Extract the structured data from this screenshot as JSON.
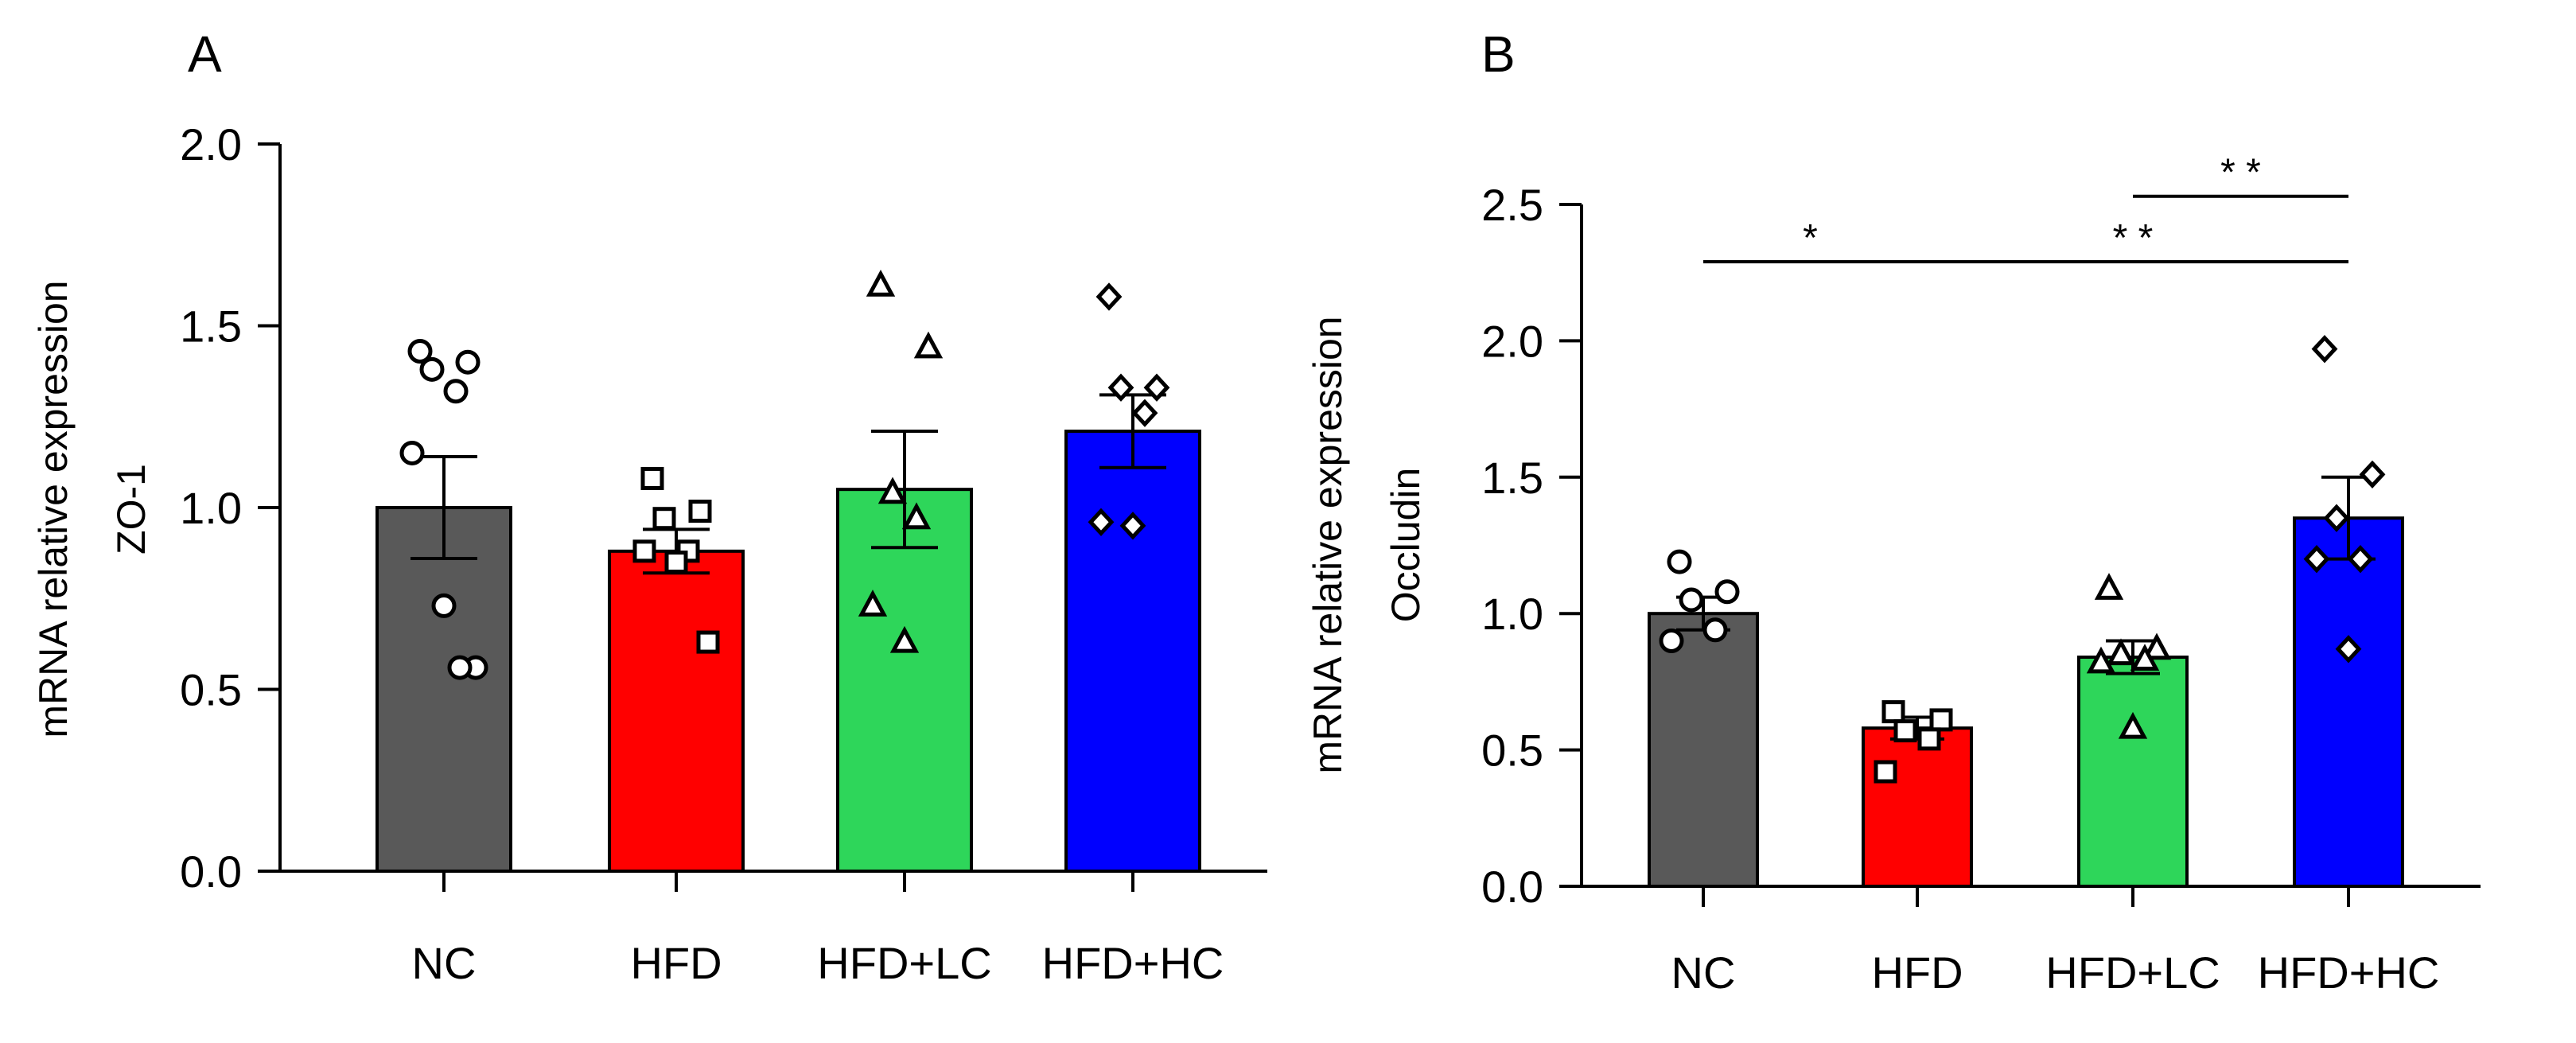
{
  "chart_data": [
    {
      "type": "bar",
      "panel_label": "A",
      "ylabel_line1": "mRNA relative expression",
      "ylabel_line2": "ZO-1",
      "ylim": [
        0,
        2.0
      ],
      "yticks": [
        "0.0",
        "0.5",
        "1.0",
        "1.5",
        "2.0"
      ],
      "ytick_values": [
        0,
        0.5,
        1.0,
        1.5,
        2.0
      ],
      "categories": [
        "NC",
        "HFD",
        "HFD+LC",
        "HFD+HC"
      ],
      "values": [
        1.0,
        0.88,
        1.05,
        1.21
      ],
      "sem": [
        0.14,
        0.06,
        0.16,
        0.1
      ],
      "colors": [
        "#595959",
        "#ff0000",
        "#2ed65a",
        "#0000ff"
      ],
      "markers": [
        "circle",
        "square",
        "triangle",
        "diamond"
      ],
      "points": [
        [
          1.43,
          1.4,
          1.38,
          1.32,
          1.15,
          0.73,
          0.56,
          0.56
        ],
        [
          1.08,
          0.99,
          0.97,
          0.88,
          0.88,
          0.85,
          0.63
        ],
        [
          1.61,
          1.44,
          1.04,
          0.97,
          0.73,
          0.63
        ],
        [
          1.58,
          1.33,
          1.33,
          1.26,
          0.96,
          0.95
        ]
      ],
      "significance": []
    },
    {
      "type": "bar",
      "panel_label": "B",
      "ylabel_line1": "mRNA relative expression",
      "ylabel_line2": "Occludin",
      "ylim": [
        0,
        2.5
      ],
      "yticks": [
        "0.0",
        "0.5",
        "1.0",
        "1.5",
        "2.0",
        "2.5"
      ],
      "ytick_values": [
        0,
        0.5,
        1.0,
        1.5,
        2.0,
        2.5
      ],
      "categories": [
        "NC",
        "HFD",
        "HFD+LC",
        "HFD+HC"
      ],
      "values": [
        1.0,
        0.58,
        0.84,
        1.35
      ],
      "sem": [
        0.06,
        0.04,
        0.06,
        0.15
      ],
      "colors": [
        "#595959",
        "#ff0000",
        "#2ed65a",
        "#0000ff"
      ],
      "markers": [
        "circle",
        "square",
        "triangle",
        "diamond"
      ],
      "points": [
        [
          1.19,
          1.08,
          1.05,
          0.94,
          0.9
        ],
        [
          0.64,
          0.61,
          0.57,
          0.54,
          0.42
        ],
        [
          1.09,
          0.87,
          0.85,
          0.83,
          0.82,
          0.58
        ],
        [
          1.97,
          1.51,
          1.35,
          1.2,
          1.2,
          0.87
        ]
      ],
      "significance": [
        {
          "from": 0,
          "to": 1,
          "y": 2.29,
          "label": "*"
        },
        {
          "from": 1,
          "to": 3,
          "y": 2.29,
          "label": "* *"
        },
        {
          "from": 2,
          "to": 3,
          "y": 2.53,
          "label": "* *"
        }
      ]
    }
  ]
}
